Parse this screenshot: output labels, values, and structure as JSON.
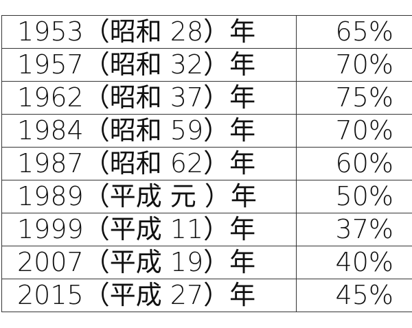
{
  "rows": [
    {
      "year": "1953（昭和 28）年",
      "percent": "65%"
    },
    {
      "year": "1957（昭和 32）年",
      "percent": "70%"
    },
    {
      "year": "1962（昭和 37）年",
      "percent": "75%"
    },
    {
      "year": "1984（昭和 59）年",
      "percent": "70%"
    },
    {
      "year": "1987（昭和 62）年",
      "percent": "60%"
    },
    {
      "year": "1989（平成 元 ）年",
      "percent": "50%"
    },
    {
      "year": "1999（平成 11）年",
      "percent": "37%"
    },
    {
      "year": "2007（平成 19）年",
      "percent": "40%"
    },
    {
      "year": "2015（平成 27）年",
      "percent": "45%"
    }
  ]
}
